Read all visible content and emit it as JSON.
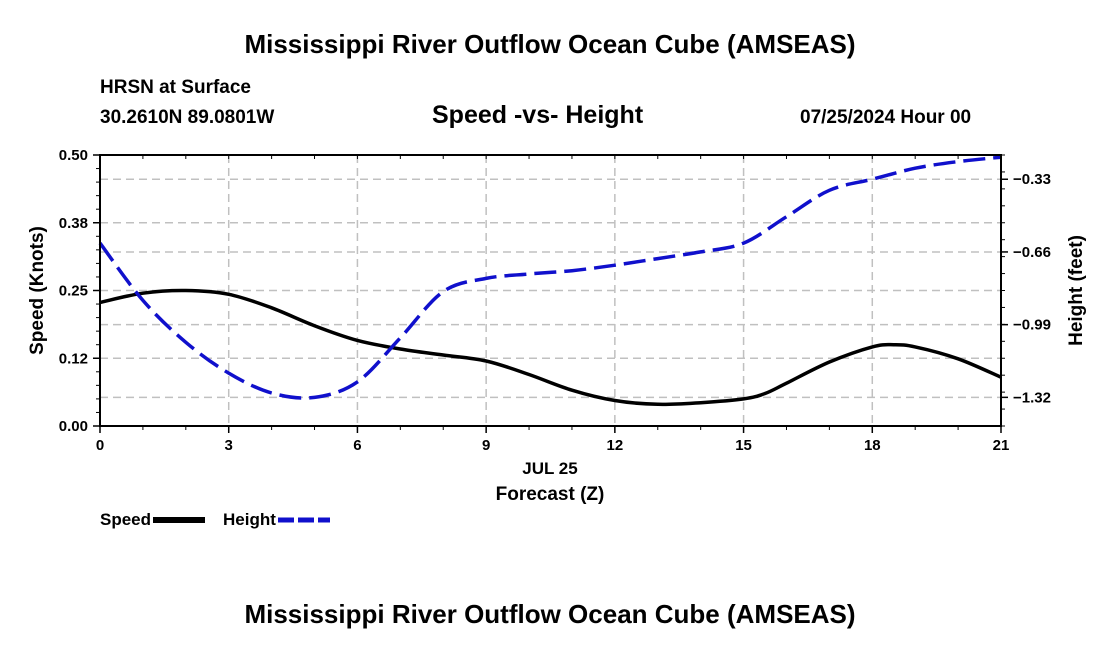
{
  "header": {
    "title": "Mississippi River Outflow Ocean Cube (AMSEAS)",
    "station": "HRSN at Surface",
    "coords": "30.2610N  89.0801W",
    "chart_title": "Speed -vs- Height",
    "datetime": "07/25/2024 Hour 00"
  },
  "footer": {
    "title": "Mississippi River Outflow Ocean Cube (AMSEAS)"
  },
  "legend": {
    "speed_label": "Speed",
    "height_label": "Height"
  },
  "colors": {
    "speed": "#000000",
    "height": "#1010cc",
    "grid": "#c0c0c0"
  },
  "chart_data": {
    "type": "line",
    "title": "Speed -vs- Height",
    "xlabel": "Forecast (Z)",
    "xsublabel": "JUL 25",
    "ylabel": "Speed (Knots)",
    "y2label": "Height (feet)",
    "xlim": [
      0,
      21
    ],
    "ylim": [
      0,
      0.5
    ],
    "y2lim": [
      -1.45,
      -0.22
    ],
    "xticks": [
      0,
      3,
      6,
      9,
      12,
      15,
      18,
      21
    ],
    "xtick_labels": [
      "0",
      "3",
      "6",
      "9",
      "12",
      "15",
      "18",
      "21"
    ],
    "yticks": [
      0.0,
      0.125,
      0.25,
      0.375,
      0.5
    ],
    "ytick_labels": [
      "0.00",
      "0.12",
      "0.25",
      "0.38",
      "0.50"
    ],
    "y2ticks": [
      -0.33,
      -0.66,
      -0.99,
      -1.32
    ],
    "y2tick_labels": [
      "−0.33",
      "−0.66",
      "−0.99",
      "−1.32"
    ],
    "grid": true,
    "series": [
      {
        "name": "Speed",
        "axis": "left",
        "style": "solid",
        "x": [
          0,
          1,
          2,
          3,
          4,
          5,
          6,
          7,
          8,
          9,
          10,
          11,
          12,
          13,
          14,
          15,
          15.5,
          16,
          17,
          18,
          18.5,
          19,
          20,
          21
        ],
        "values": [
          0.228,
          0.245,
          0.25,
          0.243,
          0.218,
          0.185,
          0.158,
          0.142,
          0.131,
          0.12,
          0.095,
          0.066,
          0.047,
          0.04,
          0.043,
          0.05,
          0.06,
          0.079,
          0.118,
          0.146,
          0.15,
          0.146,
          0.124,
          0.09
        ]
      },
      {
        "name": "Height",
        "axis": "right",
        "style": "dashed",
        "x": [
          0,
          1,
          2,
          3,
          4,
          5,
          6,
          7,
          8,
          9,
          10,
          11,
          12,
          13,
          14,
          15,
          16,
          17,
          18,
          19,
          20,
          21
        ],
        "values": [
          -0.62,
          -0.88,
          -1.07,
          -1.21,
          -1.3,
          -1.32,
          -1.25,
          -1.05,
          -0.84,
          -0.78,
          -0.76,
          -0.745,
          -0.72,
          -0.69,
          -0.66,
          -0.62,
          -0.5,
          -0.38,
          -0.33,
          -0.28,
          -0.25,
          -0.23
        ]
      }
    ]
  }
}
